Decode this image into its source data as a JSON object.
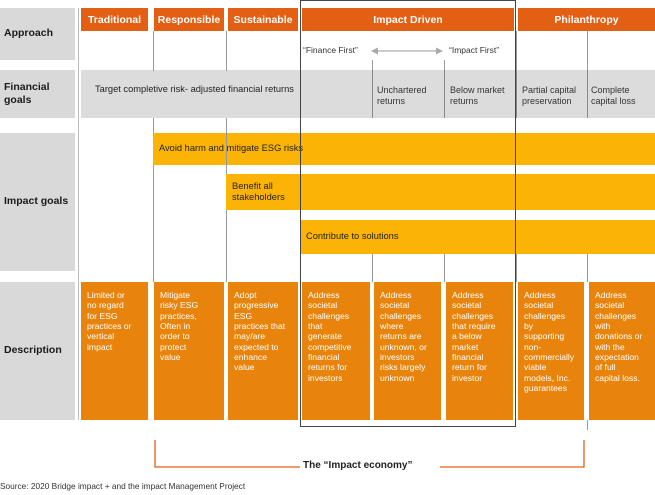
{
  "rows": {
    "approach": "Approach",
    "financial": "Financial\ngoals",
    "impact": "Impact goals",
    "description": "Description"
  },
  "columns": {
    "traditional": "Traditional",
    "responsible": "Responsible",
    "sustainable": "Sustainable",
    "impact_driven": "Impact Driven",
    "philanthropy": "Philanthropy"
  },
  "approach_spectrum": {
    "finance_first": "“Finance First”",
    "impact_first": "“Impact First”"
  },
  "financial_goals": {
    "target": "Target completive risk- adjusted financial returns",
    "unchartered": "Unchartered\nreturns",
    "below_market": "Below market\nreturns",
    "partial": "Partial capital\npreservation",
    "complete_loss": "Complete\ncapital loss"
  },
  "impact_goals": {
    "avoid_harm": "Avoid harm and mitigate ESG risks",
    "benefit": "Benefit all\nstakeholders",
    "contribute": "Contribute to solutions"
  },
  "descriptions": {
    "traditional": "Limited or\nno regard\nfor ESG\npractices or\nvertical\nimpact",
    "responsible": "Mitigate\nrisky ESG\npractices,\nOften in\norder to\nprotect\nvalue",
    "sustainable": "Adopt\nprogressive\nESG\npractices that\nmay/are\nexpected to\nenhance\nvalue",
    "impact1": "Address\nsocietal\nchallenges\nthat\ngenerate\ncompetitive\nfinancial\nreturns for\ninvestors",
    "impact2": "Address\nsocietal\nchallenges\nwhere\nreturns are\nunknown, or\ninvestors\nrisks largely\nunknown",
    "impact3": "Address\nsocietal\nchallenges\nthat require\na below\nmarket\nfinancial\nreturn for\ninvestor",
    "phil1": "Address\nsocietal\nchallenges\nby\nsupporting\nnon-\ncommercially\nviable\nmodels, Inc.\nguarantees",
    "phil2": "Address\nsocietal\nchallenges\nwith\ndonations or\nwith the\nexpectation\nof full\ncapital loss."
  },
  "impact_economy": "The “Impact economy”",
  "source": "Source: 2020 Bridge impact + and the impact Management Project",
  "colors": {
    "header_orange": "#e35f14",
    "description_orange": "#e8840c",
    "impact_yellow": "#fbb405",
    "row_gray": "#d9d9d9"
  }
}
